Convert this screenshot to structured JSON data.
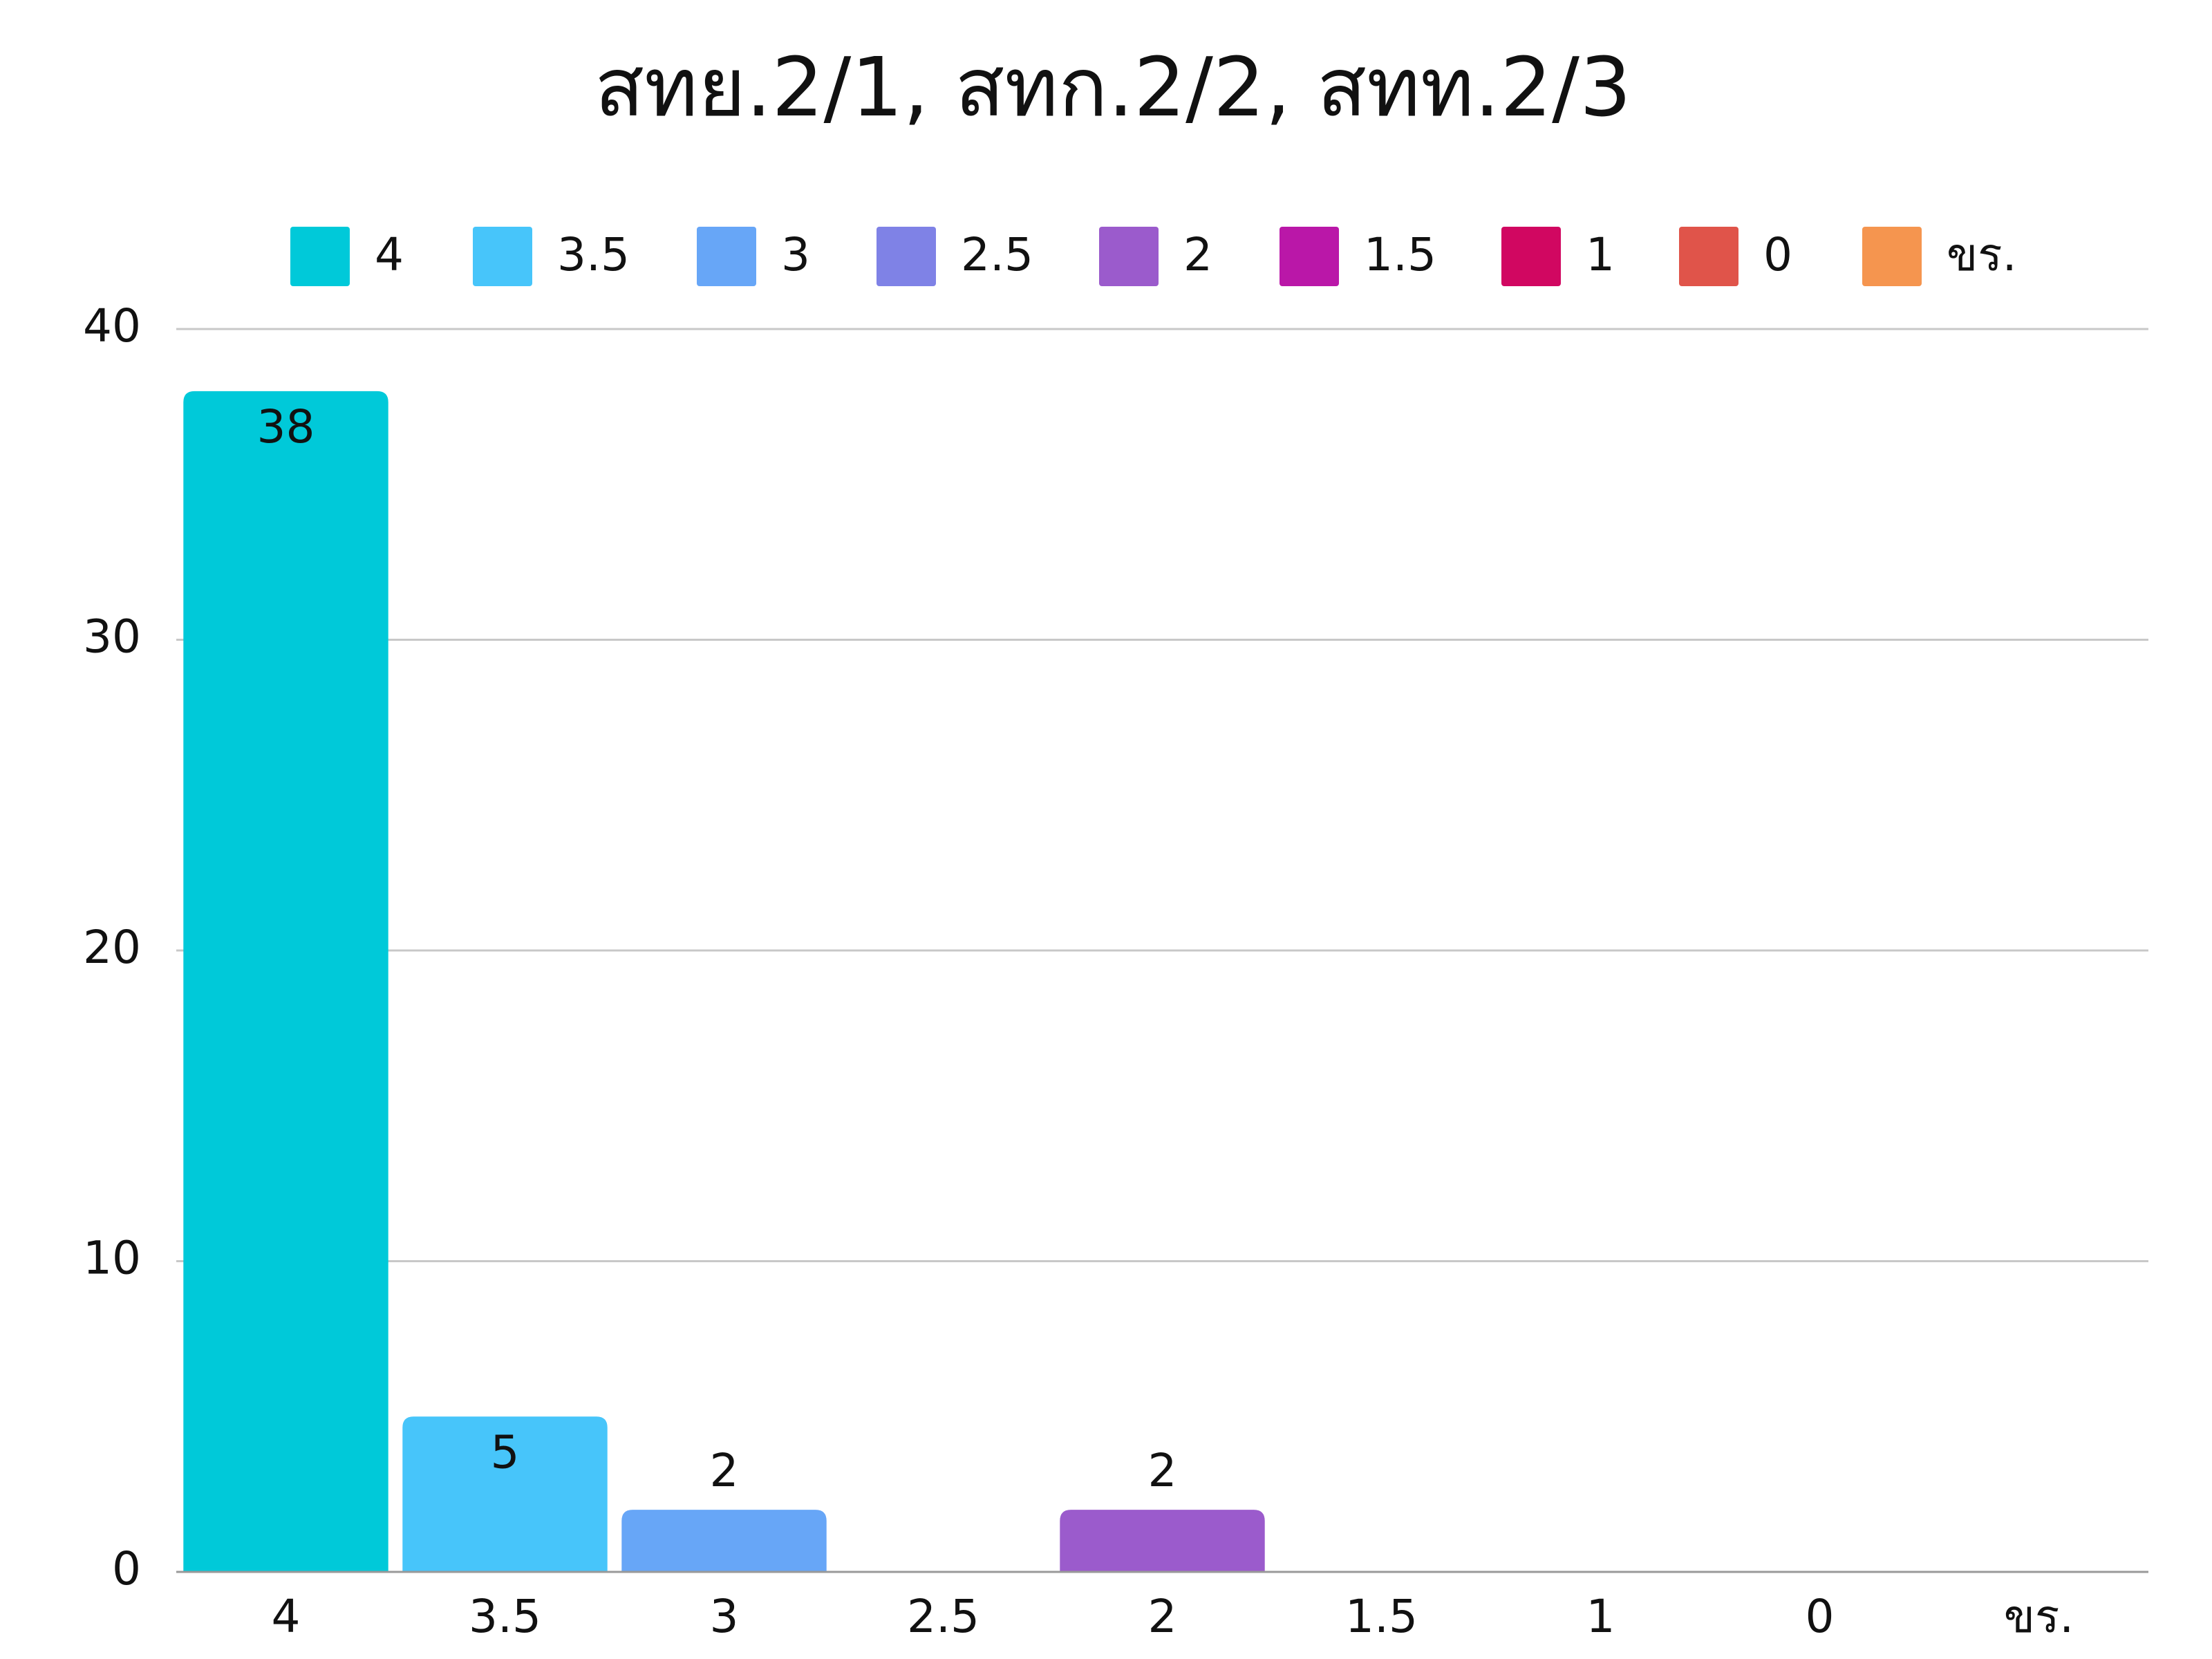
{
  "chart_data": {
    "type": "bar",
    "title": "สทย.2/1, สทก.2/2, สทท.2/3",
    "categories": [
      "4",
      "3.5",
      "3",
      "2.5",
      "2",
      "1.5",
      "1",
      "0",
      "ขร."
    ],
    "values": [
      38,
      5,
      2,
      0,
      2,
      0,
      0,
      0,
      0
    ],
    "colors": [
      "#00c9d9",
      "#47c5fa",
      "#67a6f7",
      "#7f82e6",
      "#9b5bcc",
      "#ba17a8",
      "#d10761",
      "#e0544a",
      "#f5954f"
    ],
    "ylim": [
      0,
      40
    ],
    "yticks": [
      0,
      10,
      20,
      30,
      40
    ],
    "grid": true,
    "legend": "top"
  }
}
